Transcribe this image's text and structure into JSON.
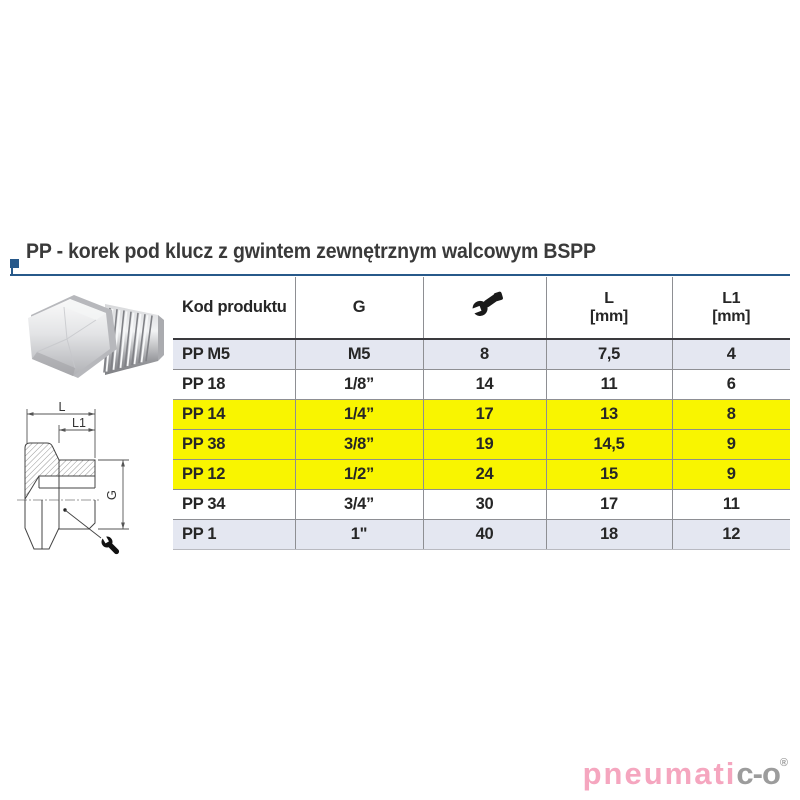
{
  "title": {
    "text": "PP - korek pod klucz z gwintem zewnętrznym walcowym BSPP"
  },
  "table": {
    "headers": {
      "product_code": "Kod produktu",
      "thread": "G",
      "wrench_icon": "wrench-icon",
      "length_label": "L",
      "length_unit": "[mm]",
      "length1_label": "L1",
      "length1_unit": "[mm]"
    },
    "rows": [
      {
        "code": "PP M5",
        "g": "M5",
        "wrench": "8",
        "l": "7,5",
        "l1": "4",
        "highlight": "alt"
      },
      {
        "code": "PP 18",
        "g": "1/8”",
        "wrench": "14",
        "l": "11",
        "l1": "6",
        "highlight": "none"
      },
      {
        "code": "PP 14",
        "g": "1/4”",
        "wrench": "17",
        "l": "13",
        "l1": "8",
        "highlight": "yellow"
      },
      {
        "code": "PP 38",
        "g": "3/8”",
        "wrench": "19",
        "l": "14,5",
        "l1": "9",
        "highlight": "yellow"
      },
      {
        "code": "PP 12",
        "g": "1/2”",
        "wrench": "24",
        "l": "15",
        "l1": "9",
        "highlight": "yellow"
      },
      {
        "code": "PP 34",
        "g": "3/4”",
        "wrench": "30",
        "l": "17",
        "l1": "11",
        "highlight": "none"
      },
      {
        "code": "PP 1",
        "g": "1\"",
        "wrench": "40",
        "l": "18",
        "l1": "12",
        "highlight": "alt"
      }
    ]
  },
  "drawing": {
    "dim_length": "L",
    "dim_length1": "L1",
    "dim_thread": "G"
  },
  "logo": {
    "text_main": "pneumati",
    "text_suffix": "c-o",
    "registered": "®"
  },
  "colors": {
    "accent_blue": "#27598a",
    "highlight_yellow": "#f9f500",
    "row_alt": "#e4e7f1",
    "logo_pink": "#f5a6bf",
    "logo_gray": "#9c9c9c"
  }
}
